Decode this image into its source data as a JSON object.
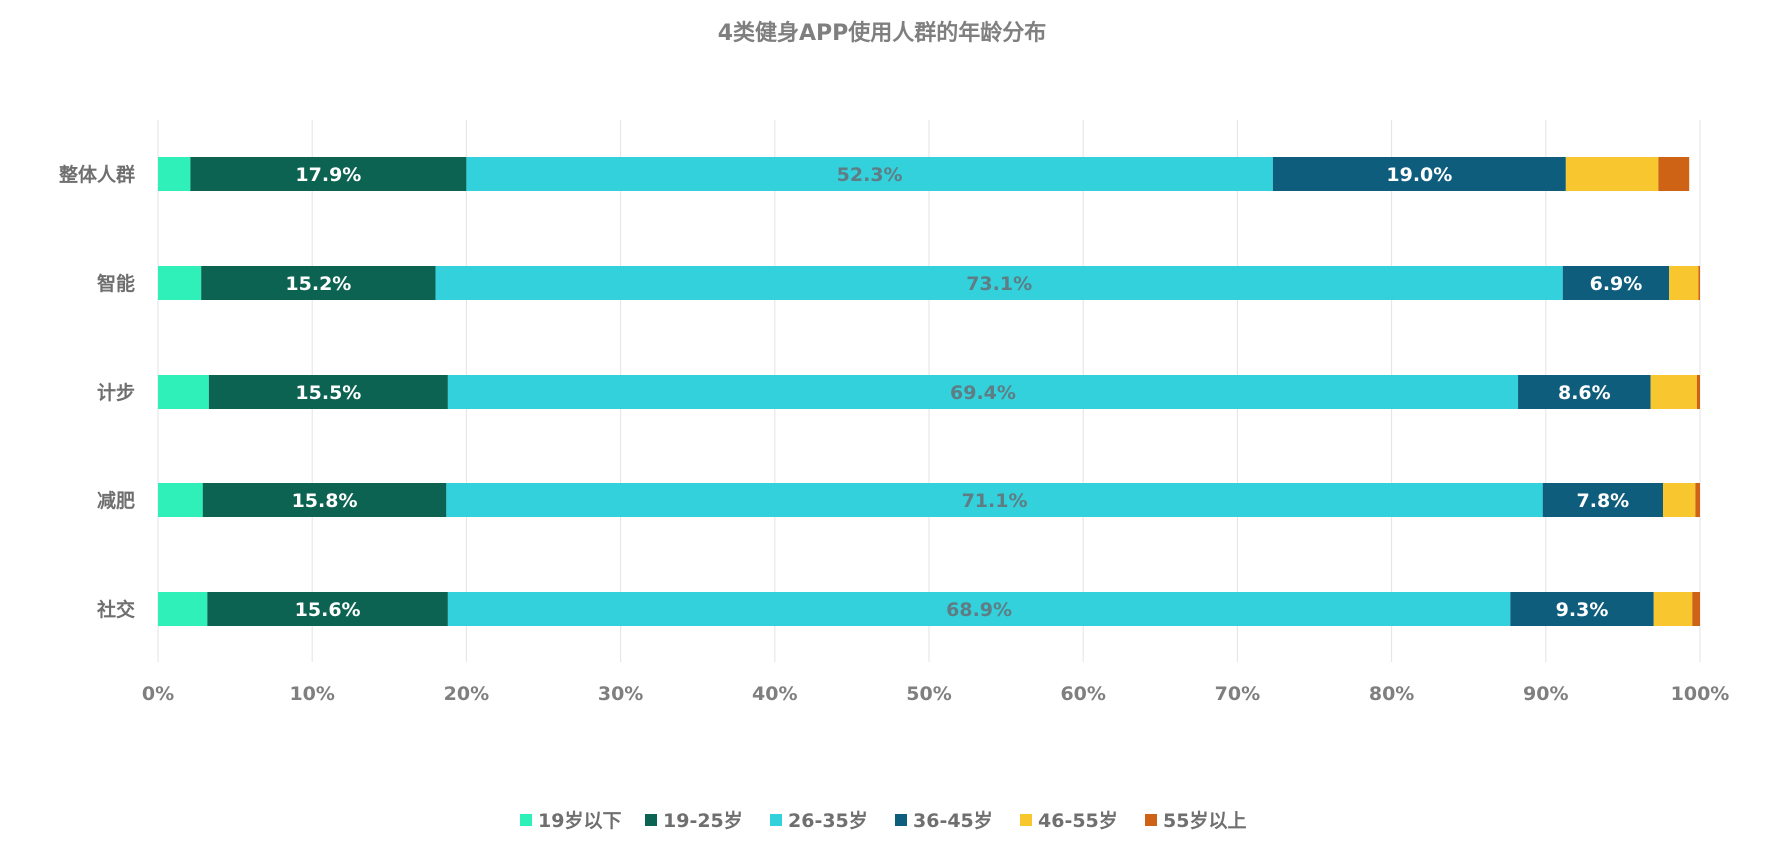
{
  "chart_data": {
    "type": "bar",
    "orientation": "horizontal",
    "stacked": "percent",
    "title": "4类健身APP使用人群的年龄分布",
    "categories": [
      "整体人群",
      "智能",
      "计步",
      "减肥",
      "社交"
    ],
    "series": [
      {
        "name": "19岁以下",
        "color": "#2ef0b8",
        "values": [
          2.1,
          2.8,
          3.3,
          2.9,
          3.2
        ]
      },
      {
        "name": "19-25岁",
        "color": "#0d6352",
        "values": [
          17.9,
          15.2,
          15.5,
          15.8,
          15.6
        ]
      },
      {
        "name": "26-35岁",
        "color": "#33d1db",
        "values": [
          52.3,
          73.1,
          69.4,
          71.1,
          68.9
        ]
      },
      {
        "name": "36-45岁",
        "color": "#0e5d7d",
        "values": [
          19.0,
          6.9,
          8.6,
          7.8,
          9.3
        ]
      },
      {
        "name": "46-55岁",
        "color": "#f8c730",
        "values": [
          6.0,
          1.9,
          3.0,
          2.1,
          2.5
        ]
      },
      {
        "name": "55岁以上",
        "color": "#cf6315",
        "values": [
          2.0,
          0.1,
          0.2,
          0.3,
          0.5
        ]
      }
    ],
    "data_labels": [
      {
        "series": 1,
        "category": 0,
        "text": "17.9%"
      },
      {
        "series": 2,
        "category": 0,
        "text": "52.3%"
      },
      {
        "series": 3,
        "category": 0,
        "text": "19.0%"
      },
      {
        "series": 1,
        "category": 1,
        "text": "15.2%"
      },
      {
        "series": 2,
        "category": 1,
        "text": "73.1%"
      },
      {
        "series": 3,
        "category": 1,
        "text": "6.9%"
      },
      {
        "series": 1,
        "category": 2,
        "text": "15.5%"
      },
      {
        "series": 2,
        "category": 2,
        "text": "69.4%"
      },
      {
        "series": 3,
        "category": 2,
        "text": "8.6%"
      },
      {
        "series": 1,
        "category": 3,
        "text": "15.8%"
      },
      {
        "series": 2,
        "category": 3,
        "text": "71.1%"
      },
      {
        "series": 3,
        "category": 3,
        "text": "7.8%"
      },
      {
        "series": 1,
        "category": 4,
        "text": "15.6%"
      },
      {
        "series": 2,
        "category": 4,
        "text": "68.9%"
      },
      {
        "series": 3,
        "category": 4,
        "text": "9.3%"
      }
    ],
    "label_colors": {
      "19-25岁": "#ffffff",
      "26-35岁": "#5f7d85",
      "36-45岁": "#ffffff"
    },
    "x_ticks": [
      "0%",
      "10%",
      "20%",
      "30%",
      "40%",
      "50%",
      "60%",
      "70%",
      "80%",
      "90%",
      "100%"
    ],
    "xlim": [
      0,
      100
    ],
    "grid": true,
    "legend_position": "bottom"
  }
}
